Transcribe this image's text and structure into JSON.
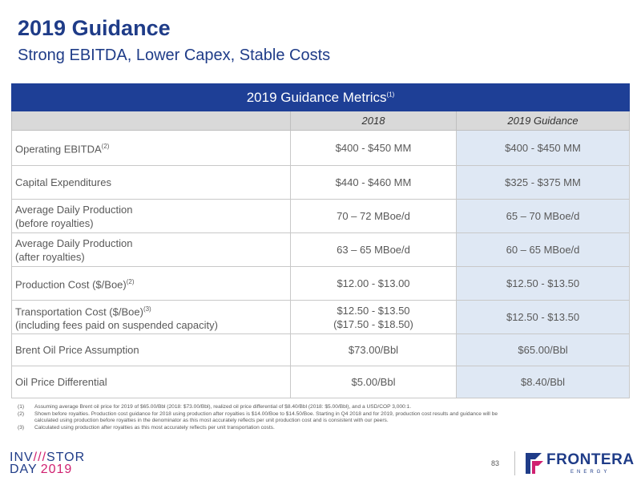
{
  "header": {
    "title": "2019 Guidance",
    "subtitle": "Strong EBITDA, Lower Capex, Stable Costs"
  },
  "table": {
    "banner": "2019 Guidance Metrics",
    "banner_sup": "(1)",
    "columns": [
      "",
      "2018",
      "2019 Guidance"
    ],
    "rows": [
      {
        "label": "Operating EBITDA",
        "sup": "(2)",
        "label2": "",
        "v2018": "$400 - $450 MM",
        "v2018b": "",
        "guidance": "$400 - $450 MM"
      },
      {
        "label": "Capital Expenditures",
        "sup": "",
        "label2": "",
        "v2018": "$440 - $460 MM",
        "v2018b": "",
        "guidance": "$325 - $375 MM"
      },
      {
        "label": "Average Daily Production",
        "sup": "",
        "label2": "(before royalties)",
        "v2018": "70 – 72 MBoe/d",
        "v2018b": "",
        "guidance": "65 – 70 MBoe/d"
      },
      {
        "label": "Average Daily Production",
        "sup": "",
        "label2": "(after royalties)",
        "v2018": "63 – 65 MBoe/d",
        "v2018b": "",
        "guidance": "60 – 65 MBoe/d"
      },
      {
        "label": "Production Cost ($/Boe)",
        "sup": "(2)",
        "label2": "",
        "v2018": "$12.00 - $13.00",
        "v2018b": "",
        "guidance": "$12.50 - $13.50"
      },
      {
        "label": "Transportation Cost ($/Boe)",
        "sup": "(3)",
        "label2": "(including fees paid on suspended capacity)",
        "v2018": "$12.50 - $13.50",
        "v2018b": "($17.50 - $18.50)",
        "guidance": "$12.50 - $13.50"
      },
      {
        "label": "Brent Oil Price Assumption",
        "sup": "",
        "label2": "",
        "v2018": "$73.00/Bbl",
        "v2018b": "",
        "guidance": "$65.00/Bbl"
      },
      {
        "label": "Oil Price Differential",
        "sup": "",
        "label2": "",
        "v2018": "$5.00/Bbl",
        "v2018b": "",
        "guidance": "$8.40/Bbl"
      }
    ]
  },
  "footnotes": [
    {
      "num": "(1)",
      "text": "Assuming average Brent oil price for 2019 of $65.00/Bbl (2018: $73.00/Bbl), realized oil price differential of $8.40/Bbl (2018: $5.00/Bbl), and a USD/COP 3,000:1."
    },
    {
      "num": "(2)",
      "text": "Shown before royalties. Production cost guidance for 2018 using production after royalties is $14.00/Boe to $14.50/Boe. Starting in Q4 2018 and for 2019, production cost results and guidance will be calculated using production before royalties in the denominator as this most accurately reflects per unit production cost and is consistent with our peers."
    },
    {
      "num": "(3)",
      "text": "Calculated using production after royalties as this most accurately reflects per unit transportation costs."
    }
  ],
  "footer": {
    "investor_a": "INV",
    "investor_slash": "///",
    "investor_b": "STOR",
    "day": "DAY",
    "year": "2019",
    "page_number": "83",
    "brand_name": "FRONTERA",
    "brand_sub": "ENERGY"
  },
  "colors": {
    "primary_blue": "#1f3c88",
    "banner_blue": "#1e3f96",
    "accent_magenta": "#d02070",
    "guidance_fill": "#dfe8f4"
  }
}
